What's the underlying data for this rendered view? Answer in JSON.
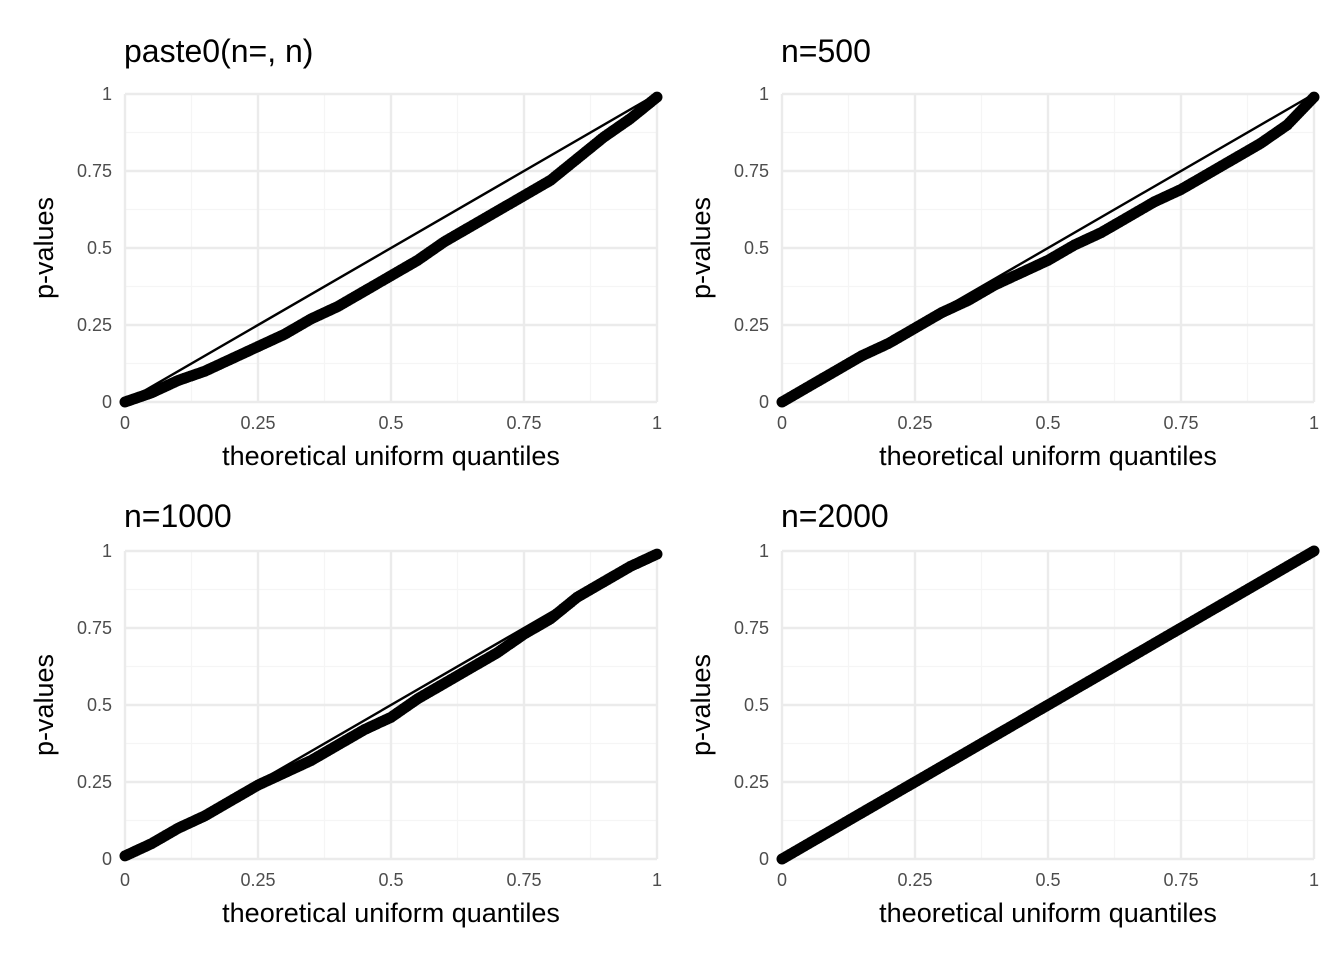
{
  "figure": {
    "background": "#ffffff"
  },
  "chart_data": [
    {
      "type": "scatter",
      "title": "paste0(n=, n)",
      "xlabel": "theoretical uniform quantiles",
      "ylabel": "p-values",
      "xlim": [
        0,
        1
      ],
      "ylim": [
        0,
        1
      ],
      "x_ticks": [
        0,
        0.25,
        0.5,
        0.75,
        1
      ],
      "x_tick_labels": [
        "0",
        "0.25",
        "0.5",
        "0.75",
        "1"
      ],
      "y_ticks": [
        0,
        0.25,
        0.5,
        0.75,
        1
      ],
      "y_tick_labels": [
        "0",
        "0.25",
        "0.5",
        "0.75",
        "1"
      ],
      "grid": true,
      "reference_line": {
        "from": [
          0,
          0
        ],
        "to": [
          1,
          1
        ]
      },
      "series": [
        {
          "x": [
            0,
            0.05,
            0.1,
            0.15,
            0.2,
            0.25,
            0.3,
            0.35,
            0.4,
            0.45,
            0.5,
            0.55,
            0.6,
            0.65,
            0.7,
            0.75,
            0.8,
            0.85,
            0.9,
            0.95,
            1
          ],
          "values": [
            0,
            0.03,
            0.07,
            0.1,
            0.14,
            0.18,
            0.22,
            0.27,
            0.31,
            0.36,
            0.41,
            0.46,
            0.52,
            0.57,
            0.62,
            0.67,
            0.72,
            0.79,
            0.86,
            0.92,
            0.99
          ]
        }
      ]
    },
    {
      "type": "scatter",
      "title": "n=500",
      "xlabel": "theoretical uniform quantiles",
      "ylabel": "p-values",
      "xlim": [
        0,
        1
      ],
      "ylim": [
        0,
        1
      ],
      "x_ticks": [
        0,
        0.25,
        0.5,
        0.75,
        1
      ],
      "x_tick_labels": [
        "0",
        "0.25",
        "0.5",
        "0.75",
        "1"
      ],
      "y_ticks": [
        0,
        0.25,
        0.5,
        0.75,
        1
      ],
      "y_tick_labels": [
        "0",
        "0.25",
        "0.5",
        "0.75",
        "1"
      ],
      "grid": true,
      "reference_line": {
        "from": [
          0,
          0
        ],
        "to": [
          1,
          1
        ]
      },
      "series": [
        {
          "x": [
            0,
            0.05,
            0.1,
            0.15,
            0.2,
            0.25,
            0.3,
            0.35,
            0.4,
            0.45,
            0.5,
            0.55,
            0.6,
            0.65,
            0.7,
            0.75,
            0.8,
            0.85,
            0.9,
            0.95,
            1
          ],
          "values": [
            0,
            0.05,
            0.1,
            0.15,
            0.19,
            0.24,
            0.29,
            0.33,
            0.38,
            0.42,
            0.46,
            0.51,
            0.55,
            0.6,
            0.65,
            0.69,
            0.74,
            0.79,
            0.84,
            0.9,
            0.99
          ]
        }
      ]
    },
    {
      "type": "scatter",
      "title": "n=1000",
      "xlabel": "theoretical uniform quantiles",
      "ylabel": "p-values",
      "xlim": [
        0,
        1
      ],
      "ylim": [
        0,
        1
      ],
      "x_ticks": [
        0,
        0.25,
        0.5,
        0.75,
        1
      ],
      "x_tick_labels": [
        "0",
        "0.25",
        "0.5",
        "0.75",
        "1"
      ],
      "y_ticks": [
        0,
        0.25,
        0.5,
        0.75,
        1
      ],
      "y_tick_labels": [
        "0",
        "0.25",
        "0.5",
        "0.75",
        "1"
      ],
      "grid": true,
      "reference_line": {
        "from": [
          0,
          0
        ],
        "to": [
          1,
          1
        ]
      },
      "series": [
        {
          "x": [
            0,
            0.05,
            0.1,
            0.15,
            0.2,
            0.25,
            0.3,
            0.35,
            0.4,
            0.45,
            0.5,
            0.55,
            0.6,
            0.65,
            0.7,
            0.75,
            0.8,
            0.85,
            0.9,
            0.95,
            1
          ],
          "values": [
            0.01,
            0.05,
            0.1,
            0.14,
            0.19,
            0.24,
            0.28,
            0.32,
            0.37,
            0.42,
            0.46,
            0.52,
            0.57,
            0.62,
            0.67,
            0.73,
            0.78,
            0.85,
            0.9,
            0.95,
            0.99
          ]
        }
      ]
    },
    {
      "type": "scatter",
      "title": "n=2000",
      "xlabel": "theoretical uniform quantiles",
      "ylabel": "p-values",
      "xlim": [
        0,
        1
      ],
      "ylim": [
        0,
        1
      ],
      "x_ticks": [
        0,
        0.25,
        0.5,
        0.75,
        1
      ],
      "x_tick_labels": [
        "0",
        "0.25",
        "0.5",
        "0.75",
        "1"
      ],
      "y_ticks": [
        0,
        0.25,
        0.5,
        0.75,
        1
      ],
      "y_tick_labels": [
        "0",
        "0.25",
        "0.5",
        "0.75",
        "1"
      ],
      "grid": true,
      "reference_line": {
        "from": [
          0,
          0
        ],
        "to": [
          1,
          1
        ]
      },
      "series": [
        {
          "x": [
            0,
            0.05,
            0.1,
            0.15,
            0.2,
            0.25,
            0.3,
            0.35,
            0.4,
            0.45,
            0.5,
            0.55,
            0.6,
            0.65,
            0.7,
            0.75,
            0.8,
            0.85,
            0.9,
            0.95,
            1
          ],
          "values": [
            0,
            0.05,
            0.1,
            0.15,
            0.2,
            0.25,
            0.3,
            0.35,
            0.4,
            0.45,
            0.5,
            0.55,
            0.6,
            0.65,
            0.7,
            0.75,
            0.8,
            0.85,
            0.9,
            0.95,
            1
          ]
        }
      ]
    }
  ],
  "colors": {
    "points": "#000000",
    "reference_line": "#000000",
    "grid_major": "#ebebeb",
    "grid_minor": "#f5f5f5"
  }
}
